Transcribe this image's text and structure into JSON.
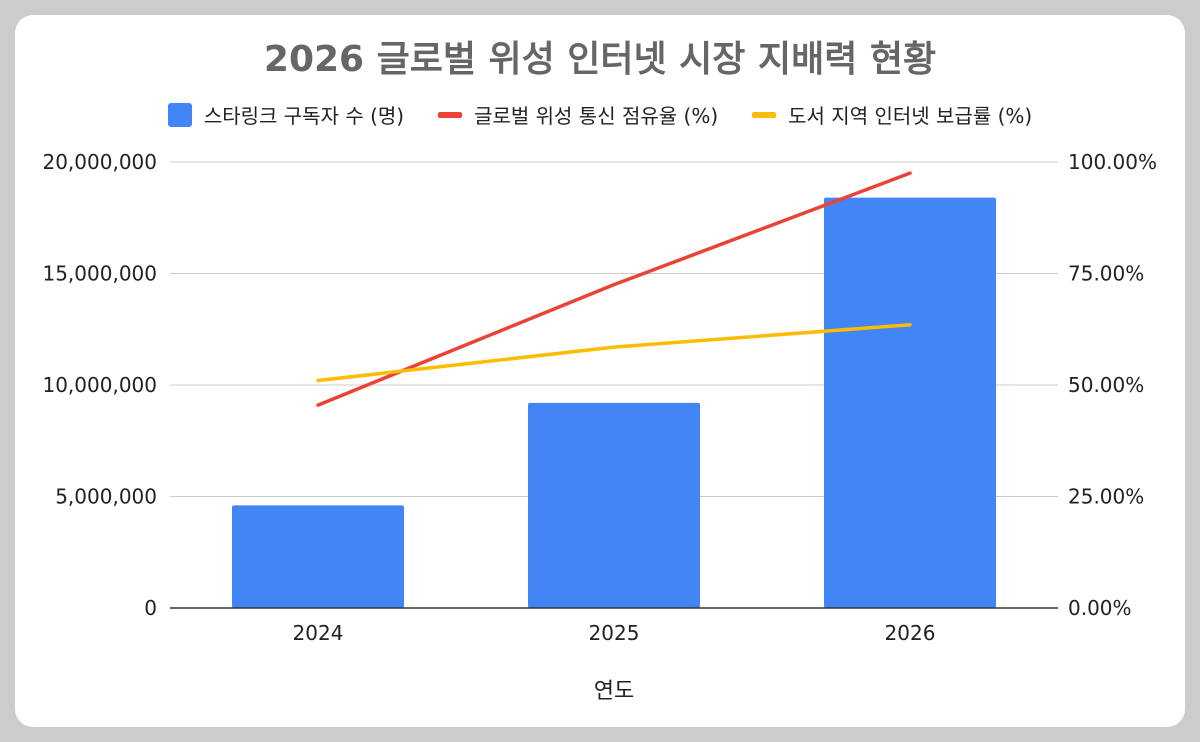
{
  "chart_data": {
    "type": "bar",
    "title": "2026 글로벌 위성 인터넷 시장 지배력 현황",
    "xlabel": "연도",
    "categories": [
      "2024",
      "2025",
      "2026"
    ],
    "ylim_left": [
      0,
      20000000
    ],
    "ylim_right": [
      0,
      100
    ],
    "left_ticks": [
      {
        "v": 0,
        "label": "0"
      },
      {
        "v": 5000000,
        "label": "5,000,000"
      },
      {
        "v": 10000000,
        "label": "10,000,000"
      },
      {
        "v": 15000000,
        "label": "15,000,000"
      },
      {
        "v": 20000000,
        "label": "20,000,000"
      }
    ],
    "right_ticks": [
      {
        "v": 0,
        "label": "0.00%"
      },
      {
        "v": 25,
        "label": "25.00%"
      },
      {
        "v": 50,
        "label": "50.00%"
      },
      {
        "v": 75,
        "label": "75.00%"
      },
      {
        "v": 100,
        "label": "100.00%"
      }
    ],
    "grid": true,
    "legend_position": "top",
    "series": [
      {
        "name": "스타링크 구독자 수 (명)",
        "type": "bar",
        "axis": "left",
        "color": "#4285f4",
        "values": [
          4600000,
          9200000,
          18400000
        ]
      },
      {
        "name": "글로벌 위성 통신 점유율 (%)",
        "type": "line",
        "axis": "right",
        "color": "#ea4335",
        "values": [
          45.5,
          72.5,
          97.5
        ]
      },
      {
        "name": "도서 지역 인터넷 보급률 (%)",
        "type": "line",
        "axis": "right",
        "color": "#fbbc04",
        "values": [
          51.0,
          58.5,
          63.5
        ]
      }
    ]
  }
}
